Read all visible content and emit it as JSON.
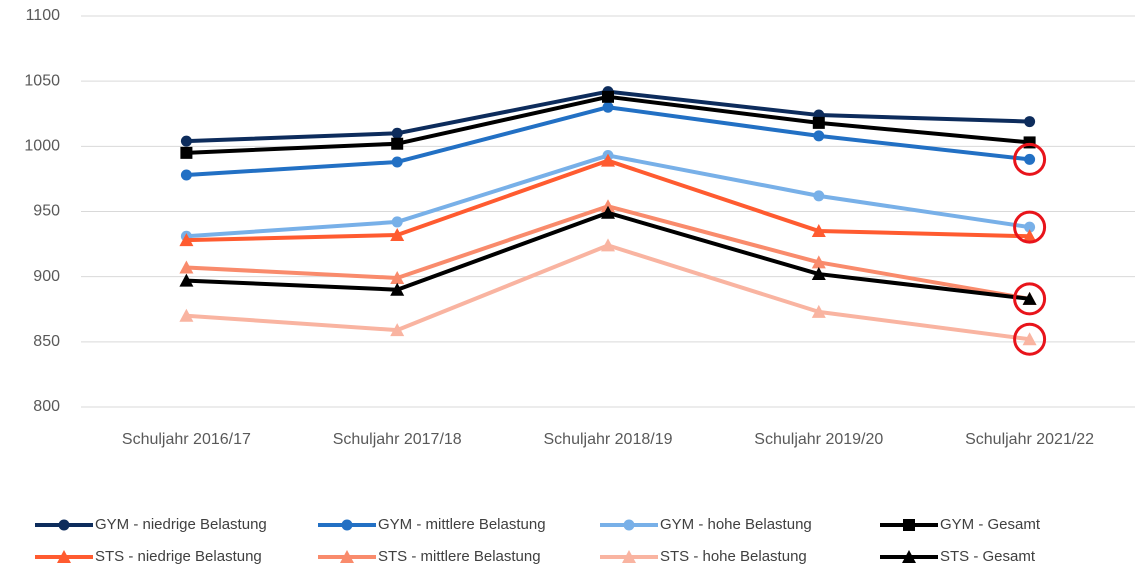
{
  "chart_data": {
    "type": "line",
    "categories": [
      "Schuljahr 2016/17",
      "Schuljahr 2017/18",
      "Schuljahr 2018/19",
      "Schuljahr 2019/20",
      "Schuljahr 2021/22"
    ],
    "series": [
      {
        "name": "GYM - niedrige Belastung",
        "color": "#0d2c5c",
        "marker": "circle",
        "values": [
          1004,
          1010,
          1042,
          1024,
          1019
        ]
      },
      {
        "name": "GYM - mittlere Belastung",
        "color": "#2270c4",
        "marker": "circle",
        "values": [
          978,
          988,
          1030,
          1008,
          990
        ]
      },
      {
        "name": "GYM - hohe Belastung",
        "color": "#78b0e8",
        "marker": "circle",
        "values": [
          931,
          942,
          993,
          962,
          938
        ]
      },
      {
        "name": "GYM - Gesamt",
        "color": "#000000",
        "marker": "square",
        "values": [
          995,
          1002,
          1038,
          1018,
          1003
        ]
      },
      {
        "name": "STS - niedrige Belastung",
        "color": "#ff5b30",
        "marker": "triangle",
        "values": [
          928,
          932,
          989,
          935,
          931
        ]
      },
      {
        "name": "STS - mittlere Belastung",
        "color": "#f98b6c",
        "marker": "triangle",
        "values": [
          907,
          899,
          954,
          911,
          883
        ]
      },
      {
        "name": "STS - hohe Belastung",
        "color": "#f9b4a1",
        "marker": "triangle",
        "values": [
          870,
          859,
          924,
          873,
          852
        ]
      },
      {
        "name": "STS - Gesamt",
        "color": "#000000",
        "marker": "triangle",
        "values": [
          897,
          890,
          949,
          902,
          883
        ]
      }
    ],
    "ylim": [
      800,
      1100
    ],
    "yticks": [
      800,
      850,
      900,
      950,
      1000,
      1050,
      1100
    ],
    "grid": true
  }
}
